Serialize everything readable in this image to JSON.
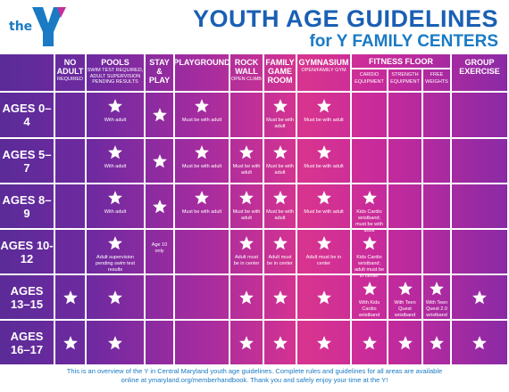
{
  "header": {
    "logo_text": "the",
    "logo_mark": "YMCA",
    "title": "YOUTH AGE GUIDELINES",
    "subtitle": "for Y FAMILY CENTERS"
  },
  "columns": [
    {
      "label": "NO ADULT",
      "sub": "REQUIRED"
    },
    {
      "label": "POOLS",
      "sub": "SWIM TEST REQUIRED, ADULT SUPERVISION PENDING RESULTS"
    },
    {
      "label": "STAY & PLAY",
      "sub": ""
    },
    {
      "label": "PLAYGROUND",
      "sub": ""
    },
    {
      "label": "ROCK WALL",
      "sub": "OPEN CLIMB"
    },
    {
      "label": "FAMILY GAME ROOM",
      "sub": ""
    },
    {
      "label": "GYMNASIUM",
      "sub": "OPEN/FAMILY GYM"
    },
    {
      "label": "CARDIO",
      "sub": "EQUIPMENT"
    },
    {
      "label": "STRENGTH",
      "sub": "EQUIPMENT"
    },
    {
      "label": "FREE",
      "sub": "WEIGHTS"
    },
    {
      "label": "GROUP EXERCISE",
      "sub": ""
    }
  ],
  "fitness_floor_label": "FITNESS FLOOR",
  "rows": [
    {
      "label": "AGES 0–4",
      "cells": [
        {
          "star": false,
          "note": ""
        },
        {
          "star": true,
          "note": "With adult"
        },
        {
          "star": true,
          "note": ""
        },
        {
          "star": true,
          "note": "Must be with adult"
        },
        {
          "star": false,
          "note": ""
        },
        {
          "star": true,
          "note": "Must be with adult"
        },
        {
          "star": true,
          "note": "Must be with adult"
        },
        {
          "star": false,
          "note": ""
        },
        {
          "star": false,
          "note": ""
        },
        {
          "star": false,
          "note": ""
        },
        {
          "star": false,
          "note": ""
        }
      ]
    },
    {
      "label": "AGES 5–7",
      "cells": [
        {
          "star": false,
          "note": ""
        },
        {
          "star": true,
          "note": "With adult"
        },
        {
          "star": true,
          "note": ""
        },
        {
          "star": true,
          "note": "Must be with adult"
        },
        {
          "star": true,
          "note": "Must be with adult"
        },
        {
          "star": true,
          "note": "Must be with adult"
        },
        {
          "star": true,
          "note": "Must be with adult"
        },
        {
          "star": false,
          "note": ""
        },
        {
          "star": false,
          "note": ""
        },
        {
          "star": false,
          "note": ""
        },
        {
          "star": false,
          "note": ""
        }
      ]
    },
    {
      "label": "AGES 8–9",
      "cells": [
        {
          "star": false,
          "note": ""
        },
        {
          "star": true,
          "note": "With adult"
        },
        {
          "star": true,
          "note": ""
        },
        {
          "star": true,
          "note": "Must be with adult"
        },
        {
          "star": true,
          "note": "Must be with adult"
        },
        {
          "star": true,
          "note": "Must be with adult"
        },
        {
          "star": true,
          "note": "Must be with adult"
        },
        {
          "star": true,
          "note": "Kids Cardio wristband; must be with adult"
        },
        {
          "star": false,
          "note": ""
        },
        {
          "star": false,
          "note": ""
        },
        {
          "star": false,
          "note": ""
        }
      ]
    },
    {
      "label": "AGES 10-12",
      "cells": [
        {
          "star": false,
          "note": ""
        },
        {
          "star": true,
          "note": "Adult supervision pending swim test results"
        },
        {
          "star": false,
          "note": "Age 10 only"
        },
        {
          "star": false,
          "note": ""
        },
        {
          "star": true,
          "note": "Adult must be in center"
        },
        {
          "star": true,
          "note": "Adult must be in center"
        },
        {
          "star": true,
          "note": "Adult must be in center"
        },
        {
          "star": true,
          "note": "Kids Cardio wristband; adult must be in center"
        },
        {
          "star": false,
          "note": ""
        },
        {
          "star": false,
          "note": ""
        },
        {
          "star": false,
          "note": ""
        }
      ]
    },
    {
      "label": "AGES 13–15",
      "cells": [
        {
          "star": true,
          "note": ""
        },
        {
          "star": true,
          "note": ""
        },
        {
          "star": false,
          "note": ""
        },
        {
          "star": false,
          "note": ""
        },
        {
          "star": true,
          "note": ""
        },
        {
          "star": true,
          "note": ""
        },
        {
          "star": true,
          "note": ""
        },
        {
          "star": true,
          "note": "With Kids Cardio wristband"
        },
        {
          "star": true,
          "note": "With Teen Quest wristband"
        },
        {
          "star": true,
          "note": "With Teen Quest 2.0 wristband"
        },
        {
          "star": true,
          "note": ""
        }
      ]
    },
    {
      "label": "AGES 16–17",
      "cells": [
        {
          "star": true,
          "note": ""
        },
        {
          "star": true,
          "note": ""
        },
        {
          "star": false,
          "note": ""
        },
        {
          "star": false,
          "note": ""
        },
        {
          "star": true,
          "note": ""
        },
        {
          "star": true,
          "note": ""
        },
        {
          "star": true,
          "note": ""
        },
        {
          "star": true,
          "note": ""
        },
        {
          "star": true,
          "note": ""
        },
        {
          "star": true,
          "note": ""
        },
        {
          "star": true,
          "note": ""
        }
      ]
    }
  ],
  "footer": {
    "line1": "This is an overview of the Y in Central Maryland youth age guidelines. Complete rules and guidelines for all areas are available",
    "line2": "online at ymaryland.org/memberhandbook. Thank you and safely enjoy your time at the Y!"
  },
  "colors": {
    "title": "#1a5fb4",
    "star": "#ffffff",
    "grid_left": "#5b2b98",
    "grid_mid": "#d8348f"
  },
  "icons": {
    "star": "star-icon",
    "logo": "ymca-logo"
  }
}
